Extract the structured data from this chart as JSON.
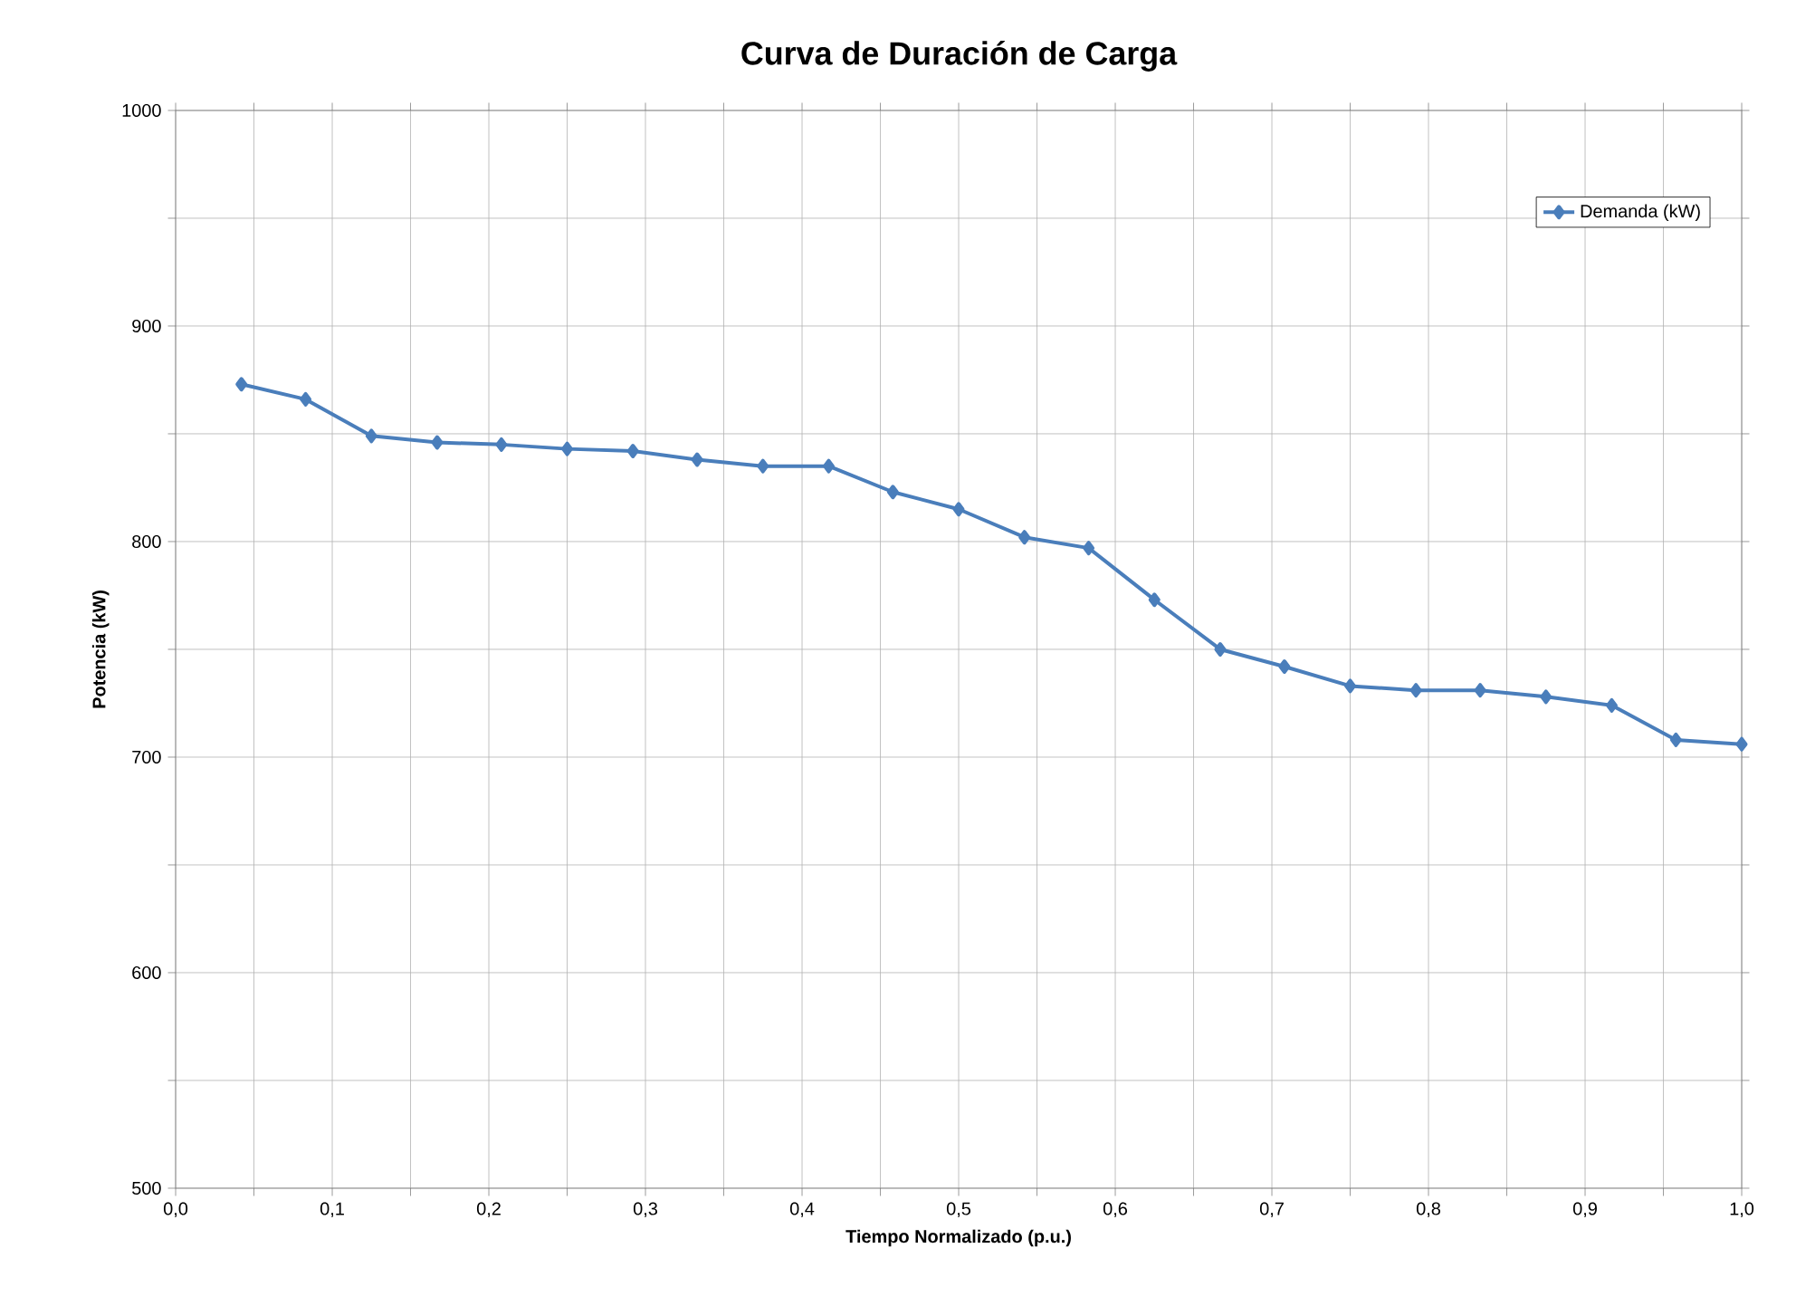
{
  "chart_data": {
    "type": "line",
    "title": "Curva de Duración de Carga",
    "xlabel": "Tiempo Normalizado (p.u.)",
    "ylabel": "Potencia (kW)",
    "x": [
      0.042,
      0.083,
      0.125,
      0.167,
      0.208,
      0.25,
      0.292,
      0.333,
      0.375,
      0.417,
      0.458,
      0.5,
      0.542,
      0.583,
      0.625,
      0.667,
      0.708,
      0.75,
      0.792,
      0.833,
      0.875,
      0.917,
      0.958,
      1.0
    ],
    "series": [
      {
        "name": "Demanda (kW)",
        "color": "#4a7ebb",
        "values": [
          873,
          866,
          849,
          846,
          845,
          843,
          842,
          838,
          835,
          835,
          823,
          815,
          802,
          797,
          773,
          750,
          742,
          733,
          731,
          731,
          728,
          724,
          708,
          706
        ]
      }
    ],
    "xlim": [
      0,
      1
    ],
    "ylim": [
      500,
      1000
    ],
    "xticks": [
      {
        "value": 0,
        "label": "0,0"
      },
      {
        "value": 0.05,
        "label": null
      },
      {
        "value": 0.1,
        "label": "0,1"
      },
      {
        "value": 0.15,
        "label": null
      },
      {
        "value": 0.2,
        "label": "0,2"
      },
      {
        "value": 0.25,
        "label": null
      },
      {
        "value": 0.3,
        "label": "0,3"
      },
      {
        "value": 0.35,
        "label": null
      },
      {
        "value": 0.4,
        "label": "0,4"
      },
      {
        "value": 0.45,
        "label": null
      },
      {
        "value": 0.5,
        "label": "0,5"
      },
      {
        "value": 0.55,
        "label": null
      },
      {
        "value": 0.6,
        "label": "0,6"
      },
      {
        "value": 0.65,
        "label": null
      },
      {
        "value": 0.7,
        "label": "0,7"
      },
      {
        "value": 0.75,
        "label": null
      },
      {
        "value": 0.8,
        "label": "0,8"
      },
      {
        "value": 0.85,
        "label": null
      },
      {
        "value": 0.9,
        "label": "0,9"
      },
      {
        "value": 0.95,
        "label": null
      },
      {
        "value": 1,
        "label": "1,0"
      }
    ],
    "yticks": [
      500,
      {
        "value": 550,
        "label": null
      },
      600,
      {
        "value": 650,
        "label": null
      },
      700,
      {
        "value": 750,
        "label": null
      },
      800,
      {
        "value": 850,
        "label": null
      },
      900,
      {
        "value": 950,
        "label": null
      },
      1000
    ],
    "grid": true,
    "legend": "top right",
    "marker": "diamond",
    "line_style": "solid"
  }
}
